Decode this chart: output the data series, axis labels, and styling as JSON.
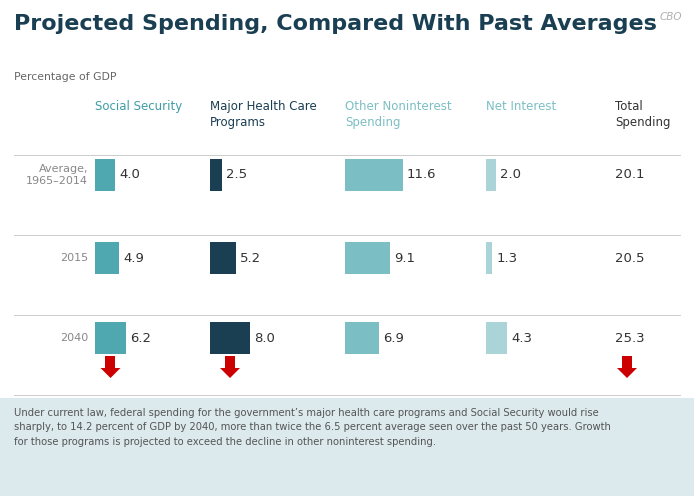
{
  "title": "Projected Spending, Compared With Past Averages",
  "subtitle": "Percentage of GDP",
  "cbo_label": "CBO",
  "background_color": "#ffffff",
  "footer_bg_color": "#dce9ed",
  "footer_text": "Under current law, federal spending for the government’s major health care programs and Social Security would rise\nsharply, to 14.2 percent of GDP by 2040, more than twice the 6.5 percent average seen over the past 50 years. Growth\nfor those programs is projected to exceed the decline in other noninterest spending.",
  "rows": [
    {
      "label": "Average,\n1965–2014"
    },
    {
      "label": "2015"
    },
    {
      "label": "2040"
    }
  ],
  "columns": [
    {
      "header": "Social Security",
      "header_color": "#3d9da6",
      "values": [
        4.0,
        4.9,
        6.2
      ],
      "bar_color": "#4fa8b0"
    },
    {
      "header": "Major Health Care\nPrograms",
      "header_color": "#1a3f52",
      "values": [
        2.5,
        5.2,
        8.0
      ],
      "bar_color": "#1a3f52"
    },
    {
      "header": "Other Noninterest\nSpending",
      "header_color": "#7bbfc4",
      "values": [
        11.6,
        9.1,
        6.9
      ],
      "bar_color": "#7bbfc4"
    },
    {
      "header": "Net Interest",
      "header_color": "#7bbfc4",
      "values": [
        2.0,
        1.3,
        4.3
      ],
      "bar_color": "#aad4d8"
    }
  ],
  "totals": [
    20.1,
    20.5,
    25.3
  ],
  "total_header": "Total\nSpending",
  "total_color": "#333333",
  "title_color": "#1a3f52",
  "title_fontsize": 16,
  "header_fontsize": 8.5,
  "value_fontsize": 9.5,
  "row_label_fontsize": 8,
  "arrow_color": "#cc0000",
  "sep_color": "#cccccc",
  "row_label_color": "#888888",
  "value_color": "#333333",
  "figw": 6.94,
  "figh": 4.96,
  "dpi": 100
}
